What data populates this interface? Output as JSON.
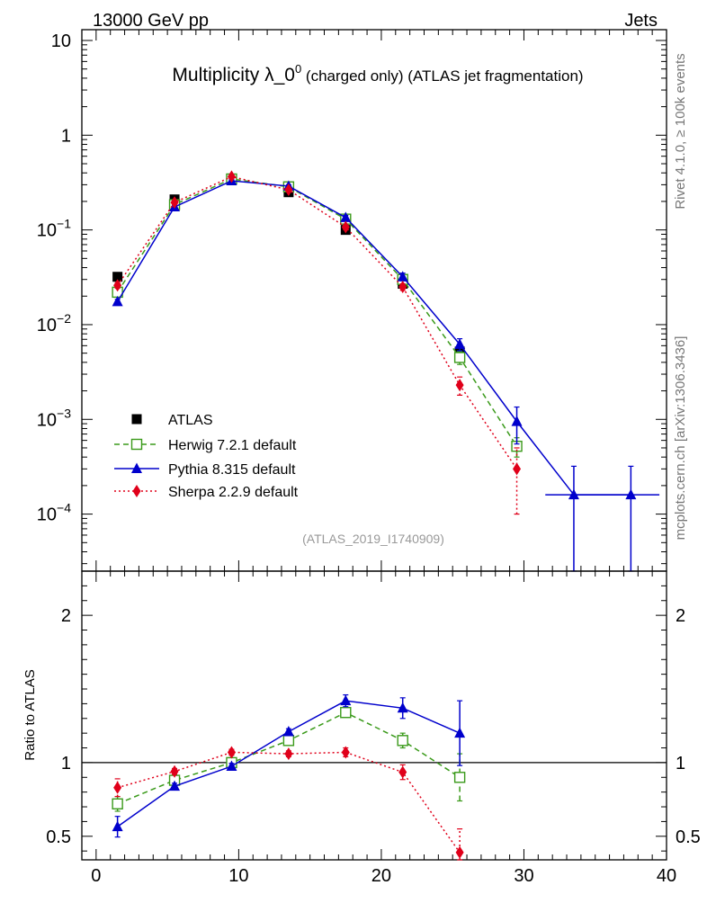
{
  "header": {
    "left": "13000 GeV pp",
    "right": "Jets"
  },
  "title": {
    "main": "Multiplicity λ_0",
    "sup": "0",
    "suffix": " (charged only) (ATLAS jet fragmentation)"
  },
  "side_labels": {
    "rivet": "Rivet 4.1.0, ≥ 100k events",
    "mcplots": "mcplots.cern.ch [arXiv:1306.3436]"
  },
  "analysis_tag": "(ATLAS_2019_I1740909)",
  "legend": [
    {
      "label": "ATLAS",
      "series": "data"
    },
    {
      "label": "Herwig 7.2.1 default",
      "series": "herwig"
    },
    {
      "label": "Pythia 8.315 default",
      "series": "pythia"
    },
    {
      "label": "Sherpa 2.2.9 default",
      "series": "sherpa"
    }
  ],
  "ratio_ylabel": "Ratio to ATLAS",
  "colors": {
    "data": "#000000",
    "herwig": "#3a9a1a",
    "pythia": "#0000cc",
    "sherpa": "#e0001a",
    "tag": "#999999",
    "side": "#777777"
  },
  "chart_data": [
    {
      "type": "scatter",
      "panel": "main",
      "yscale": "log",
      "xlim": [
        -1,
        40
      ],
      "ylim": [
        2.5e-05,
        13
      ],
      "x_ticks": [
        0,
        10,
        20,
        30,
        40
      ],
      "y_ticks": [
        {
          "value": 10,
          "base": "10",
          "exp": ""
        },
        {
          "value": 1,
          "base": "1",
          "exp": ""
        },
        {
          "value": 0.1,
          "base": "10",
          "exp": "−1"
        },
        {
          "value": 0.01,
          "base": "10",
          "exp": "−2"
        },
        {
          "value": 0.001,
          "base": "10",
          "exp": "−3"
        },
        {
          "value": 0.0001,
          "base": "10",
          "exp": "−4"
        }
      ],
      "series": [
        {
          "name": "ATLAS",
          "key": "data",
          "x": [
            1.5,
            5.5,
            9.5,
            13.5,
            17.5,
            21.5,
            25.5
          ],
          "y": [
            0.032,
            0.21,
            0.34,
            0.25,
            0.1,
            0.027,
            0.0052
          ],
          "err": [
            0.002,
            0.01,
            0.012,
            0.01,
            0.005,
            0.002,
            0.0006
          ]
        },
        {
          "name": "Herwig 7.2.1 default",
          "key": "herwig",
          "x": [
            1.5,
            5.5,
            9.5,
            13.5,
            17.5,
            21.5,
            25.5,
            29.5
          ],
          "y": [
            0.022,
            0.185,
            0.345,
            0.285,
            0.13,
            0.03,
            0.0045,
            0.00052
          ],
          "err": [
            0.0015,
            0.008,
            0.012,
            0.01,
            0.006,
            0.002,
            0.0007,
            0.00012
          ]
        },
        {
          "name": "Pythia 8.315 default",
          "key": "pythia",
          "x": [
            1.5,
            5.5,
            9.5,
            13.5,
            17.5,
            21.5,
            25.5,
            29.5,
            33.5,
            37.5
          ],
          "y": [
            0.0175,
            0.175,
            0.33,
            0.29,
            0.135,
            0.032,
            0.0062,
            0.00095,
            0.00016,
            0.00016
          ],
          "err": [
            0.001,
            0.007,
            0.012,
            0.01,
            0.007,
            0.003,
            0.0009,
            0.0004,
            0.00016,
            0.00016
          ]
        },
        {
          "name": "Sherpa 2.2.9 default",
          "key": "sherpa",
          "x": [
            1.5,
            5.5,
            9.5,
            13.5,
            17.5,
            21.5,
            25.5,
            29.5
          ],
          "y": [
            0.026,
            0.195,
            0.365,
            0.265,
            0.107,
            0.025,
            0.0023,
            0.0003
          ],
          "err": [
            0.0018,
            0.009,
            0.013,
            0.01,
            0.006,
            0.002,
            0.0005,
            0.0002
          ]
        }
      ]
    },
    {
      "type": "scatter",
      "panel": "ratio",
      "yscale": "linear",
      "xlim": [
        -1,
        40
      ],
      "ylim": [
        0.34,
        2.3
      ],
      "x_ticks": [
        0,
        10,
        20,
        30,
        40
      ],
      "y_ticks": [
        0.5,
        1,
        2
      ],
      "reference_line": 1,
      "series": [
        {
          "name": "Herwig 7.2.1 default",
          "key": "herwig",
          "x": [
            1.5,
            5.5,
            9.5,
            13.5,
            17.5,
            21.5,
            25.5
          ],
          "y": [
            0.72,
            0.88,
            1.0,
            1.15,
            1.34,
            1.15,
            0.9
          ],
          "err": [
            0.05,
            0.03,
            0.02,
            0.02,
            0.03,
            0.05,
            0.16
          ]
        },
        {
          "name": "Pythia 8.315 default",
          "key": "pythia",
          "x": [
            1.5,
            5.5,
            9.5,
            13.5,
            17.5,
            21.5,
            25.5
          ],
          "y": [
            0.565,
            0.84,
            0.975,
            1.21,
            1.42,
            1.37,
            1.2
          ],
          "err": [
            0.07,
            0.02,
            0.02,
            0.02,
            0.04,
            0.07,
            0.22
          ]
        },
        {
          "name": "Sherpa 2.2.9 default",
          "key": "sherpa",
          "x": [
            1.5,
            5.5,
            9.5,
            13.5,
            17.5,
            21.5,
            25.5
          ],
          "y": [
            0.83,
            0.94,
            1.07,
            1.06,
            1.07,
            0.935,
            0.39
          ],
          "err": [
            0.06,
            0.02,
            0.02,
            0.02,
            0.03,
            0.05,
            0.16
          ]
        }
      ]
    }
  ]
}
